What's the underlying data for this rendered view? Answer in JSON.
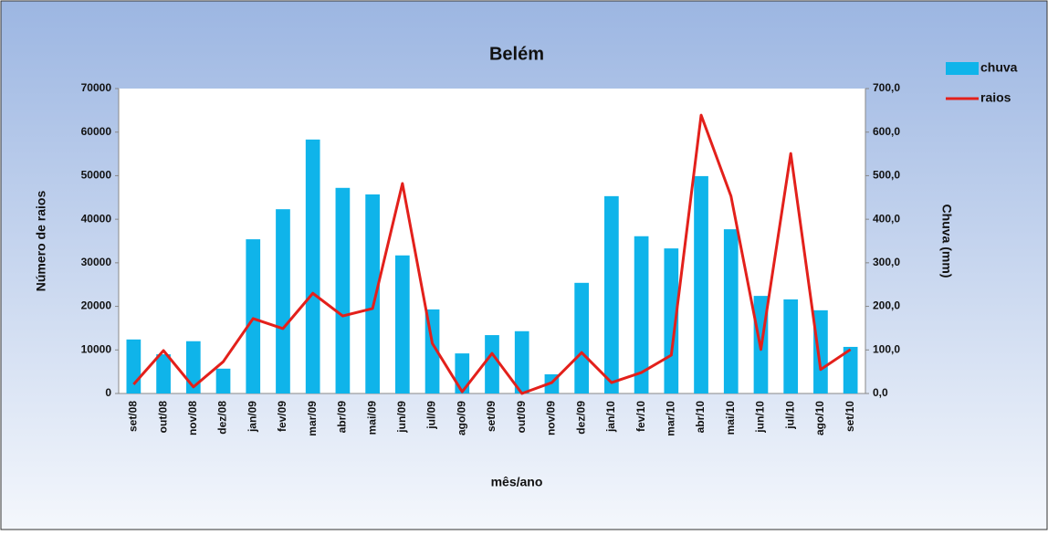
{
  "chart_data": {
    "type": "bar_line",
    "title": "Belém",
    "xlabel": "mês/ano",
    "ylabel": "Número  de raios",
    "y2label": "Chuva (mm)",
    "categories": [
      "set/08",
      "out/08",
      "nov/08",
      "dez/08",
      "jan/09",
      "fev/09",
      "mar/09",
      "abr/09",
      "mai/09",
      "jun/09",
      "jul/09",
      "ago/09",
      "set/09",
      "out/09",
      "nov/09",
      "dez/09",
      "jan/10",
      "fev/10",
      "mar/10",
      "abr/10",
      "mai/10",
      "jun/10",
      "jul/10",
      "ago/10",
      "set/10"
    ],
    "series": [
      {
        "name": "chuva",
        "type": "bar",
        "axis": "y2",
        "color": "#0fb4ea",
        "values": [
          124,
          90,
          120,
          57,
          354,
          423,
          583,
          472,
          457,
          317,
          193,
          92,
          134,
          143,
          44,
          254,
          453,
          361,
          333,
          499,
          377,
          224,
          216,
          191,
          107
        ]
      },
      {
        "name": "raios",
        "type": "line",
        "color": "#e3201b",
        "values": [
          2100,
          9850,
          1500,
          7300,
          17200,
          14900,
          23000,
          17800,
          19500,
          48200,
          11500,
          400,
          9200,
          0,
          2500,
          9400,
          2500,
          4800,
          8800,
          63900,
          45300,
          10100,
          55100,
          5500,
          10100
        ]
      }
    ],
    "ylim": [
      0,
      70000
    ],
    "yticks": [
      0,
      10000,
      20000,
      30000,
      40000,
      50000,
      60000,
      70000
    ],
    "y2lim": [
      0,
      700
    ],
    "y2ticks": [
      {
        "value": 0,
        "label": "0,0"
      },
      {
        "value": 100,
        "label": "100,0"
      },
      {
        "value": 200,
        "label": "200,0"
      },
      {
        "value": 300,
        "label": "300,0"
      },
      {
        "value": 400,
        "label": "400,0"
      },
      {
        "value": 500,
        "label": "500,0"
      },
      {
        "value": 600,
        "label": "600,0"
      },
      {
        "value": 700,
        "label": "700,0"
      }
    ],
    "grid": false,
    "legend": "upper right"
  }
}
